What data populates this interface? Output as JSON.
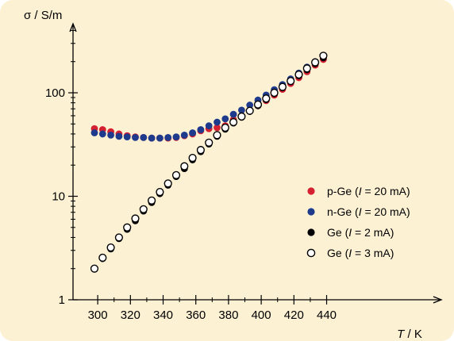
{
  "chart_data": {
    "type": "scatter",
    "ylabel": "σ / S/m",
    "xlabel_var": "T",
    "xlabel_unit": " / K",
    "xlim": [
      292,
      446
    ],
    "ylim": [
      1,
      420
    ],
    "yscale": "log",
    "x_ticks": [
      300,
      320,
      340,
      360,
      380,
      400,
      420,
      440
    ],
    "y_ticks": [
      1,
      10,
      100
    ],
    "grid": false,
    "legend_position": "right",
    "background": "#fdf1d4",
    "series": [
      {
        "legend_prefix": "p-Ge (",
        "legend_var": "I",
        "legend_suffix": " = 20 mA)",
        "marker": "filled",
        "color": "#d42030",
        "x": [
          298,
          303,
          308,
          313,
          318,
          323,
          328,
          333,
          338,
          343,
          348,
          353,
          358,
          363,
          368,
          373,
          378,
          383,
          388,
          393,
          398,
          403,
          408,
          413,
          418,
          423,
          428,
          433,
          438
        ],
        "y": [
          45,
          44,
          42,
          40,
          38.5,
          37.5,
          37,
          36.5,
          36.5,
          36.5,
          37,
          38.5,
          40,
          43,
          45,
          46,
          48,
          55,
          60,
          68,
          75,
          84,
          95,
          108,
          123,
          140,
          160,
          185,
          210
        ]
      },
      {
        "legend_prefix": "n-Ge (",
        "legend_var": "I",
        "legend_suffix": " = 20 mA)",
        "marker": "filled",
        "color": "#1e3a8c",
        "x": [
          298,
          303,
          308,
          313,
          318,
          323,
          328,
          333,
          338,
          343,
          348,
          353,
          358,
          363,
          368,
          373,
          378,
          383,
          388,
          393,
          398,
          403,
          408,
          413,
          418,
          423,
          428,
          433,
          438
        ],
        "y": [
          41,
          40,
          39,
          38,
          37.5,
          37,
          37,
          36.5,
          36.5,
          37,
          37.5,
          39,
          41,
          44,
          48,
          52,
          56,
          62,
          68,
          76,
          85,
          95,
          107,
          120,
          136,
          155,
          177,
          200,
          225
        ]
      },
      {
        "legend_prefix": "Ge (",
        "legend_var": "I",
        "legend_suffix": " = 2 mA)",
        "marker": "filled",
        "color": "#000000",
        "x": [
          298,
          303,
          308,
          313,
          318,
          323,
          328,
          333,
          338,
          343,
          348,
          353,
          358,
          363,
          368,
          373,
          378,
          383,
          388,
          393,
          398,
          403,
          408,
          413,
          418,
          423,
          428,
          433,
          438
        ],
        "y": [
          2.0,
          2.5,
          3.1,
          3.9,
          4.8,
          5.8,
          7.2,
          8.7,
          10.6,
          12.8,
          15.5,
          18.5,
          22.5,
          27,
          32,
          38,
          44.5,
          51,
          58,
          66,
          75,
          86,
          98,
          112,
          128,
          146,
          167,
          191,
          218
        ]
      },
      {
        "legend_prefix": "Ge (",
        "legend_var": "I",
        "legend_suffix": " = 3 mA)",
        "marker": "open",
        "color": "#000000",
        "x": [
          298,
          303,
          308,
          313,
          318,
          323,
          328,
          333,
          338,
          343,
          348,
          353,
          358,
          363,
          368,
          373,
          378,
          383,
          388,
          393,
          398,
          403,
          408,
          413,
          418,
          423,
          428,
          433,
          438
        ],
        "y": [
          2.0,
          2.55,
          3.2,
          4.0,
          5.0,
          6.1,
          7.5,
          9.1,
          11,
          13.3,
          16,
          19.5,
          23.5,
          28,
          33,
          39,
          46,
          52,
          59,
          67,
          77,
          88,
          100,
          114,
          130,
          150,
          172,
          197,
          228
        ]
      }
    ]
  }
}
